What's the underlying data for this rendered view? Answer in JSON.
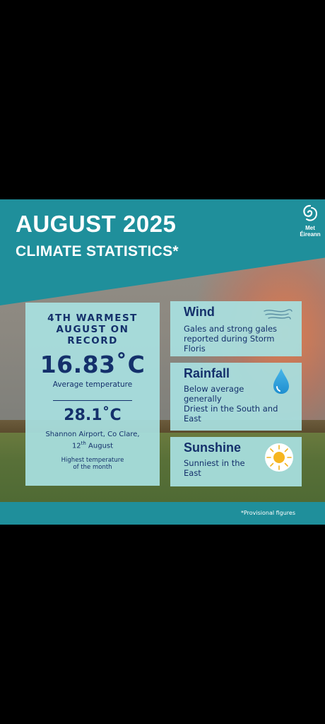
{
  "header": {
    "title": "AUGUST 2025",
    "subtitle": "CLIMATE STATISTICS*",
    "logo_text_1": "Met",
    "logo_text_2": "Éireann"
  },
  "summary": {
    "headline_1": "4TH WARMEST",
    "headline_2": "AUGUST ON",
    "headline_3": "RECORD",
    "avg_temp": "16.83˚C",
    "avg_label": "Average temperature",
    "max_temp": "28.1˚C",
    "location": "Shannon Airport, Co Clare,",
    "date_day": "12",
    "date_suffix": "th",
    "date_month": " August",
    "max_note_1": "Highest temperature",
    "max_note_2": "of the month"
  },
  "wind": {
    "title": "Wind",
    "text_1": "Gales and strong gales",
    "text_2": "reported during Storm",
    "text_3": "Floris",
    "icon": "wind-icon"
  },
  "rainfall": {
    "title": "Rainfall",
    "text_1": "Below average",
    "text_2": "generally",
    "text_3": "Driest in the South and",
    "text_4": "East",
    "icon": "raindrop-icon"
  },
  "sunshine": {
    "title": "Sunshine",
    "text_1": "Sunniest in the",
    "text_2": "East",
    "icon": "sun-icon"
  },
  "footer": {
    "note": "*Provisional figures"
  },
  "colors": {
    "teal": "#1f8f9b",
    "panel": "#a8e0e0",
    "navy": "#14306b"
  }
}
